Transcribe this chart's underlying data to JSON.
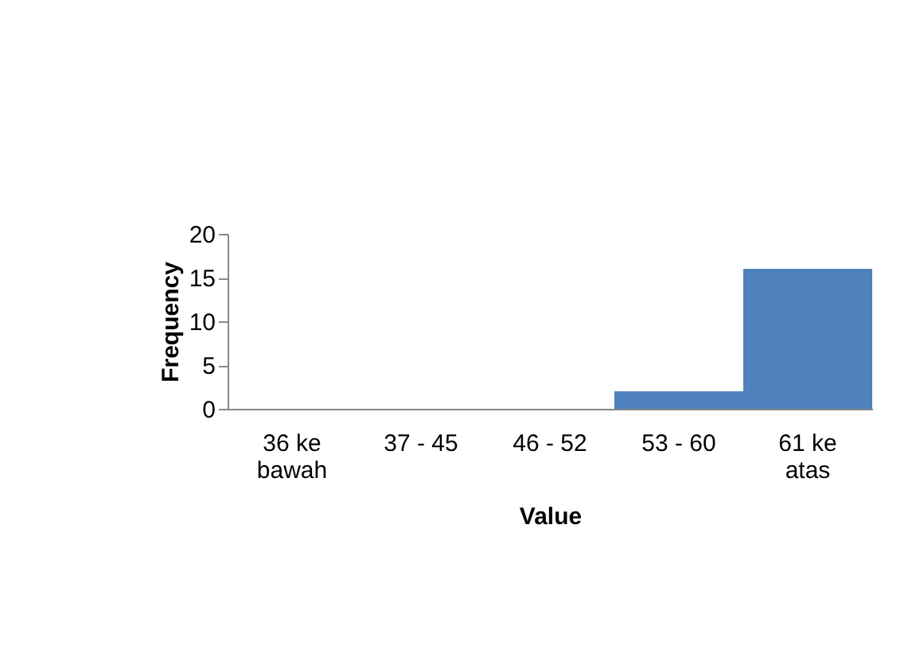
{
  "chart_data": {
    "type": "bar",
    "xlabel": "Value",
    "ylabel": "Frequency",
    "categories": [
      "36 ke bawah",
      "37 - 45",
      "46 - 52",
      "53 - 60",
      "61 ke atas"
    ],
    "values": [
      0,
      0,
      0,
      2,
      16
    ],
    "color": "#4f81bd",
    "ylim": [
      0,
      20
    ],
    "yticks": [
      0,
      5,
      10,
      15,
      20
    ],
    "grid": false
  }
}
